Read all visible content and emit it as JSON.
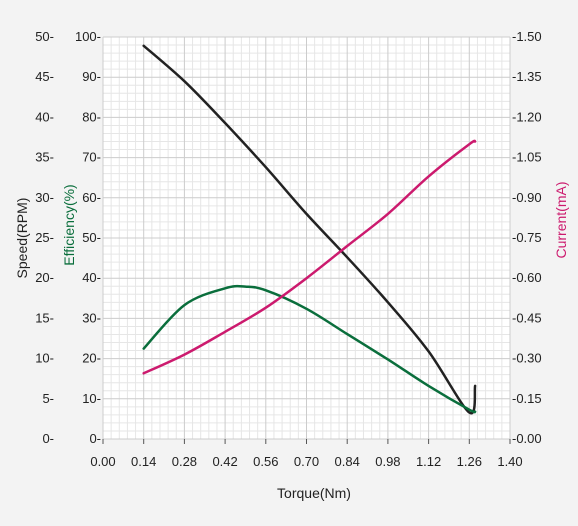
{
  "chart_data": {
    "type": "line",
    "xlabel": "Torque(Nm)",
    "x_ticks": [
      "0.00",
      "0.14",
      "0.28",
      "0.42",
      "0.56",
      "0.70",
      "0.84",
      "0.98",
      "1.12",
      "1.26",
      "1.40"
    ],
    "xlim": [
      0,
      1.4
    ],
    "grid": true,
    "axes": {
      "speed": {
        "label": "Speed(RPM)",
        "side": "left-outer",
        "ylim": [
          0,
          50
        ],
        "ticks": [
          "0",
          "5",
          "10",
          "15",
          "20",
          "25",
          "30",
          "35",
          "40",
          "45",
          "50"
        ]
      },
      "efficiency": {
        "label": "Efficiency(%)",
        "side": "left-inner",
        "ylim": [
          0,
          100
        ],
        "ticks": [
          "0",
          "10",
          "20",
          "30",
          "40",
          "50",
          "60",
          "70",
          "80",
          "90",
          "100"
        ]
      },
      "current": {
        "label": "Current(mA)",
        "side": "right",
        "ylim": [
          0,
          1.5
        ],
        "ticks": [
          "-0.00",
          "-0.15",
          "-0.30",
          "-0.45",
          "-0.60",
          "-0.75",
          "-0.90",
          "-1.05",
          "-1.20",
          "-1.35",
          "-1.50"
        ]
      }
    },
    "series": [
      {
        "axis": "speed",
        "color": "#222222",
        "x": [
          0.14,
          0.28,
          0.42,
          0.56,
          0.7,
          0.84,
          0.98,
          1.12,
          1.26,
          1.28
        ],
        "y": [
          48.9,
          44.5,
          39.3,
          33.8,
          28.0,
          22.6,
          17.0,
          10.9,
          3.3,
          6.6
        ]
      },
      {
        "axis": "efficiency",
        "color": "#0a6e3c",
        "x": [
          0.14,
          0.28,
          0.42,
          0.49,
          0.56,
          0.7,
          0.84,
          0.98,
          1.12,
          1.26,
          1.28
        ],
        "y": [
          22.5,
          33.3,
          37.5,
          37.9,
          37.0,
          32.4,
          26.1,
          19.8,
          13.2,
          7.3,
          6.8
        ]
      },
      {
        "axis": "current",
        "color": "#cc1a6e",
        "x": [
          0.14,
          0.28,
          0.42,
          0.56,
          0.7,
          0.84,
          0.98,
          1.12,
          1.26,
          1.28
        ],
        "y": [
          0.245,
          0.315,
          0.4,
          0.49,
          0.6,
          0.72,
          0.84,
          0.98,
          1.1,
          1.11
        ]
      }
    ]
  }
}
